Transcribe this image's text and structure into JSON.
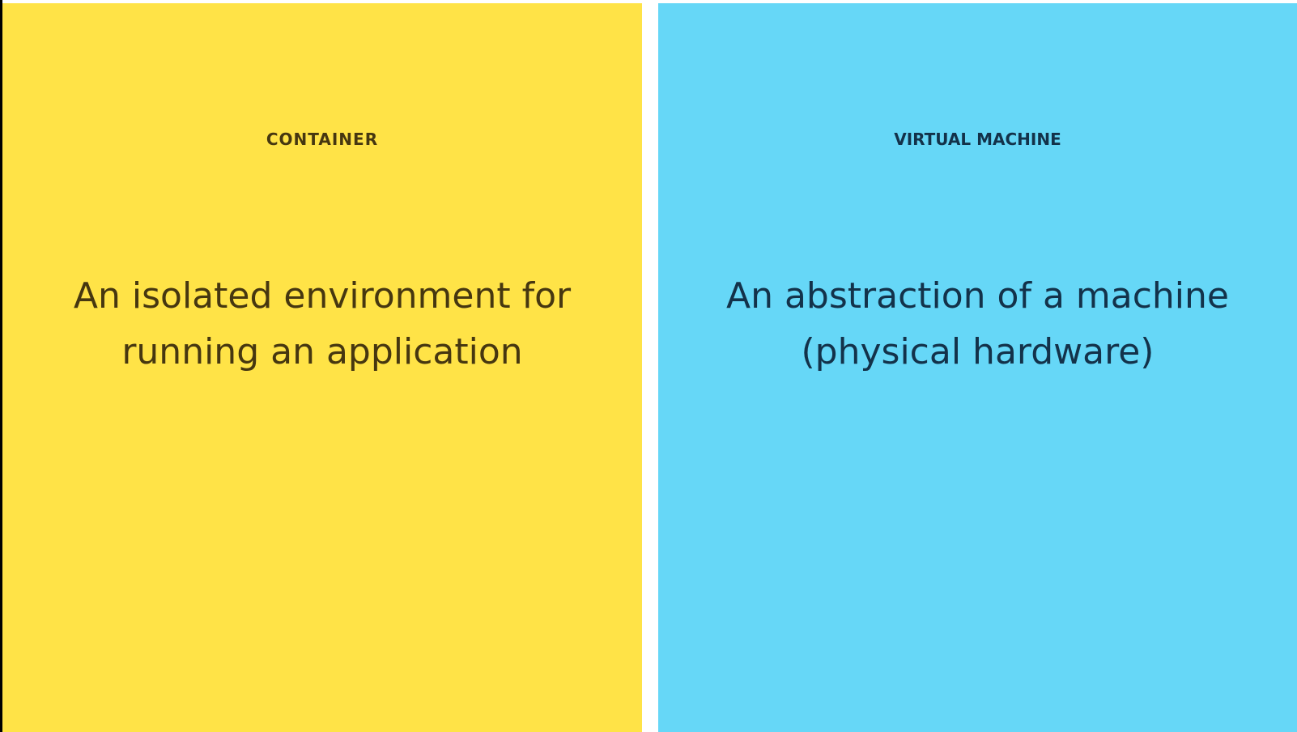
{
  "container": {
    "title": "CONTAINER",
    "description": "An isolated environment for running an application"
  },
  "virtual_machine": {
    "title": "VIRTUAL MACHINE",
    "description": "An abstraction of a machine (physical hardware)"
  },
  "colors": {
    "container_background": "#FFE347",
    "virtual_machine_background": "#66D7F7",
    "container_text": "#463710",
    "virtual_machine_text": "#13324A"
  }
}
